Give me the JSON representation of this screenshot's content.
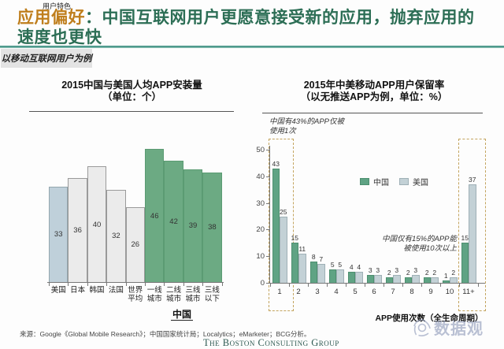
{
  "header": {
    "eyebrow": "用户特色",
    "title_prefix": "应用偏好",
    "title_line1": "：中国互联网用户更愿意接受新的应用，抛弃应用的",
    "title_line2": "速度也更快",
    "subtitle_tag": "以移动互联网用户为例"
  },
  "colors": {
    "accent_orange": "#bf7e1c",
    "title_green": "#2c6e55",
    "rule_teal": "#2e8577",
    "china_green": "#5fa384",
    "us_gray_blue": "#c3d1d6",
    "left_green": "#6caa83",
    "left_blue": "#bfd0da",
    "left_gray": "#ebebeb",
    "dash_box": "#c3a45e"
  },
  "chart_data": [
    {
      "type": "bar",
      "title": "2015中国与美国人均APP安装量",
      "subtitle": "（单位：个）",
      "categories": [
        "美国",
        "日本",
        "韩国",
        "法国",
        "世界平均",
        "一线城市",
        "二线城市",
        "三线城市",
        "三线以下"
      ],
      "category_lines": [
        [
          "美国"
        ],
        [
          "日本"
        ],
        [
          "韩国"
        ],
        [
          "法国"
        ],
        [
          "世界",
          "平均"
        ],
        [
          "一线",
          "城市"
        ],
        [
          "二线",
          "城市"
        ],
        [
          "三线",
          "城市"
        ],
        [
          "三线",
          "以下"
        ]
      ],
      "values": [
        33,
        36,
        40,
        32,
        26,
        46,
        42,
        39,
        38
      ],
      "bar_colors": [
        "blue",
        "gray",
        "gray",
        "gray",
        "gray",
        "green",
        "green",
        "green",
        "green"
      ],
      "group_label": "中国",
      "ylim": [
        0,
        46
      ],
      "grid": false,
      "value_labels": "inside-center"
    },
    {
      "type": "bar",
      "title": "2015年中美移动APP用户保留率",
      "subtitle": "（以无推送APP为例，单位：%）",
      "categories": [
        "1",
        "2",
        "3",
        "4",
        "5",
        "6",
        "7",
        "8",
        "9",
        "10",
        "11+"
      ],
      "series": [
        {
          "name": "中国",
          "color": "#5fa384",
          "values": [
            43,
            15,
            8,
            5,
            4,
            3,
            2,
            2,
            2,
            1,
            15
          ]
        },
        {
          "name": "美国",
          "color": "#c3d1d6",
          "values": [
            25,
            11,
            7,
            5,
            4,
            3,
            3,
            3,
            2,
            2,
            37
          ]
        }
      ],
      "y_ticks": [
        0,
        10,
        20,
        30,
        40,
        50
      ],
      "ylim": [
        0,
        50
      ],
      "xlabel": "APP使用次数（全生命周期）",
      "legend_position": "center",
      "grid": false,
      "highlighted_categories": [
        "1",
        "11+"
      ],
      "annotations": [
        "中国有43%的APP仅被使用1次",
        "中国仅有15%的APP能被使用10次以上"
      ]
    }
  ],
  "annotations": {
    "left_note_line1": "中国有43%的APP仅被",
    "left_note_line2": "使用1次",
    "right_note_line1": "中国仅有15%的APP能",
    "right_note_line2": "被使用10次以上"
  },
  "footer": {
    "source": "来源：Google《Global Mobile Research》；中国国家统计局；Localytics；eMarketer；BCG分析。",
    "logo": "The Boston Consulting Group",
    "watermark": "数据观"
  }
}
